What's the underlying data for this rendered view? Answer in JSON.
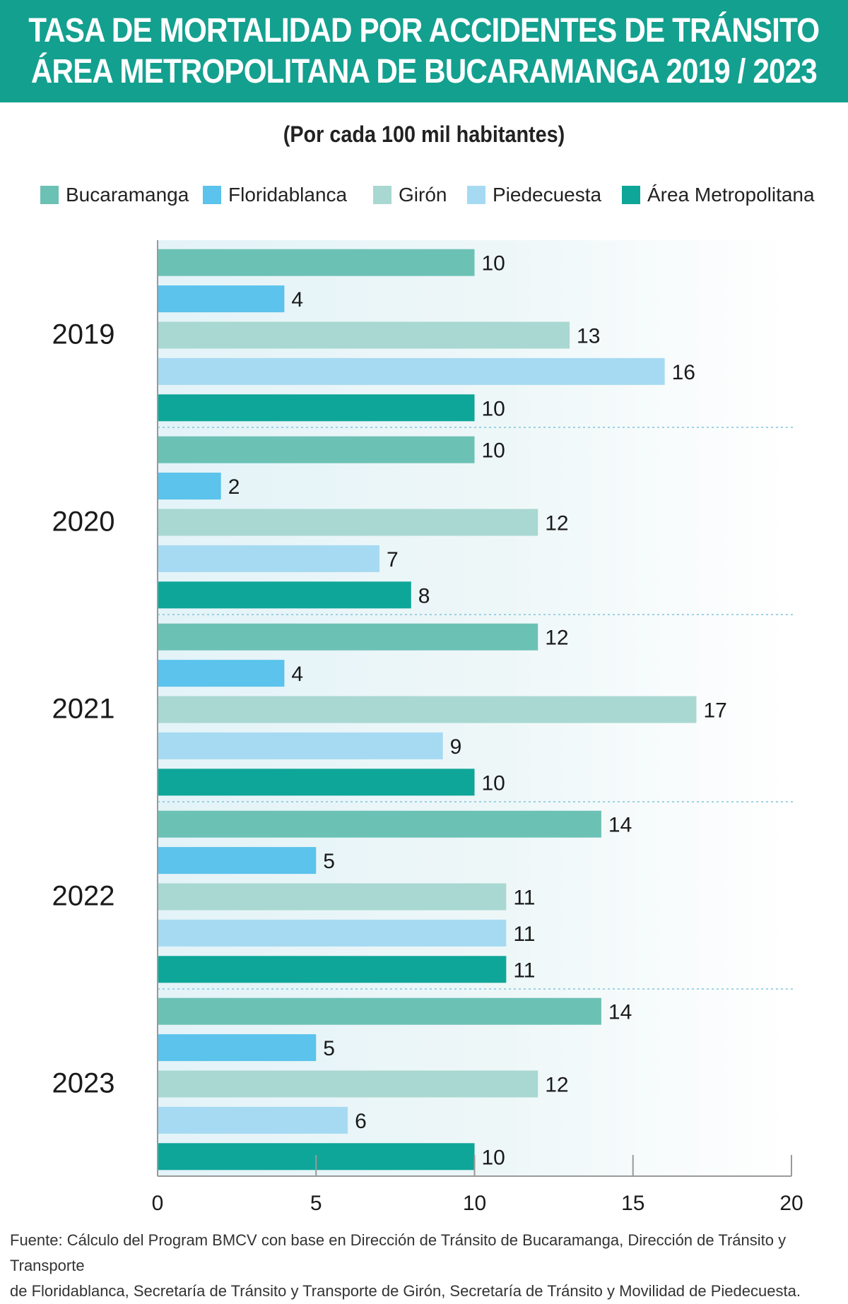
{
  "header": {
    "line1": "TASA DE MORTALIDAD POR ACCIDENTES DE TRÁNSITO",
    "line2": "ÁREA METROPOLITANA DE BUCARAMANGA 2019 / 2023"
  },
  "subtitle": "(Por cada 100 mil habitantes)",
  "source": {
    "line1": "Fuente: Cálculo del Program BMCV con base en Dirección de Tránsito de Bucaramanga, Dirección de Tránsito y Transporte",
    "line2": "de Floridablanca, Secretaría de Tránsito y Transporte de Girón, Secretaría de Tránsito y Movilidad de Piedecuesta."
  },
  "chart_data": {
    "type": "bar",
    "orientation": "horizontal",
    "categories": [
      "2019",
      "2020",
      "2021",
      "2022",
      "2023"
    ],
    "series": [
      {
        "name": "Bucaramanga",
        "color": "#6cc1b5",
        "values": [
          10,
          10,
          12,
          14,
          14
        ]
      },
      {
        "name": "Floridablanca",
        "color": "#5bc3ec",
        "values": [
          4,
          2,
          4,
          5,
          5
        ]
      },
      {
        "name": "Girón",
        "color": "#a8d8d1",
        "values": [
          13,
          12,
          17,
          11,
          12
        ]
      },
      {
        "name": "Piedecuesta",
        "color": "#a6daf2",
        "values": [
          16,
          7,
          9,
          11,
          6
        ]
      },
      {
        "name": "Área Metropolitana",
        "color": "#0ea698",
        "values": [
          10,
          8,
          10,
          11,
          10
        ]
      }
    ],
    "xlim": [
      0,
      20
    ],
    "xticks": [
      0,
      5,
      10,
      15,
      20
    ],
    "legend_position": "top",
    "grid": false
  }
}
